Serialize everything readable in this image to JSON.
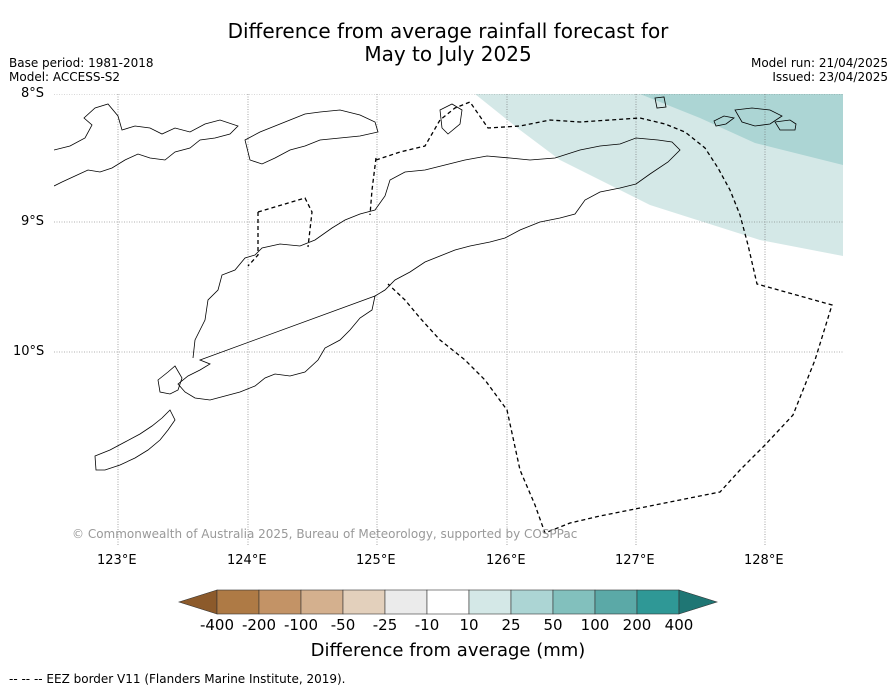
{
  "title": {
    "line1": "Difference from average rainfall forecast for",
    "line2": "May to July 2025"
  },
  "meta": {
    "base_period": "Base period: 1981-2018",
    "model": "Model: ACCESS-S2",
    "model_run": "Model run: 21/04/2025",
    "issued": "Issued: 23/04/2025"
  },
  "axes": {
    "lat_labels": [
      "8°S",
      "9°S",
      "10°S"
    ],
    "lon_labels": [
      "123°E",
      "124°E",
      "125°E",
      "126°E",
      "127°E",
      "128°E"
    ]
  },
  "copyright": "© Commonwealth of Australia 2025, Bureau of Meteorology, supported by COSPPac",
  "colorbar": {
    "ticks": [
      "-400",
      "-200",
      "-100",
      "-50",
      "-25",
      "-10",
      "10",
      "25",
      "50",
      "100",
      "200",
      "400"
    ],
    "colors": [
      "#8c5a2b",
      "#ae7a45",
      "#c39366",
      "#d4b08e",
      "#e3d0bc",
      "#ebebeb",
      "#ffffff",
      "#d4e8e7",
      "#acd5d4",
      "#82c0bd",
      "#5ba9a7",
      "#2f9896",
      "#1f7674"
    ],
    "label": "Difference from average (mm)"
  },
  "footnote": "--  --  -- EEZ border V11 (Flanders Marine Institute, 2019)."
}
